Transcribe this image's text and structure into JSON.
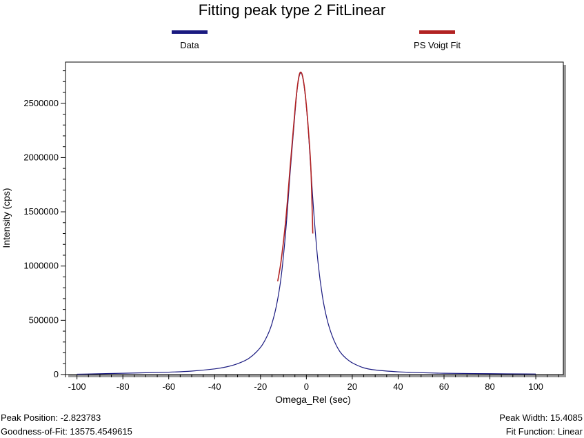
{
  "chart_data": {
    "type": "line",
    "title": "Fitting peak type 2 FitLinear",
    "xlabel": "Omega_Rel (sec)",
    "ylabel": "Intensity (cps)",
    "xlim": [
      -105,
      112
    ],
    "ylim": [
      0,
      2880000
    ],
    "x_ticks": [
      -100,
      -80,
      -60,
      -40,
      -20,
      0,
      20,
      40,
      60,
      80,
      100
    ],
    "x_tick_labels": [
      "-100",
      "-80",
      "-60",
      "-40",
      "-20",
      "0",
      "20",
      "40",
      "60",
      "80",
      "100"
    ],
    "y_ticks": [
      0,
      500000,
      1000000,
      1500000,
      2000000,
      2500000
    ],
    "y_tick_labels": [
      "0",
      "500000",
      "1000000",
      "1500000",
      "2000000",
      "2500000"
    ],
    "grid": false,
    "legend_placement": "top",
    "series": [
      {
        "name": "Data",
        "color": "#1a1a80",
        "x": [
          -100,
          -80,
          -60,
          -50,
          -40,
          -35,
          -30,
          -25,
          -20,
          -17,
          -15,
          -13,
          -11,
          -9,
          -7,
          -5,
          -4,
          -3,
          -2,
          -1,
          0,
          1,
          3,
          5,
          7,
          9,
          11,
          13,
          15,
          17,
          20,
          25,
          30,
          40,
          50,
          60,
          80,
          100
        ],
        "values": [
          3000,
          12000,
          22000,
          32000,
          52000,
          70000,
          100000,
          150000,
          250000,
          360000,
          470000,
          640000,
          900000,
          1320000,
          1880000,
          2400000,
          2630000,
          2760000,
          2770000,
          2660000,
          2470000,
          2200000,
          1560000,
          1050000,
          720000,
          510000,
          370000,
          270000,
          200000,
          155000,
          108000,
          62000,
          42000,
          25000,
          17000,
          12000,
          8000,
          5000
        ]
      },
      {
        "name": "PS Voigt Fit",
        "color": "#b22222",
        "x": [
          -12.5,
          -11,
          -9,
          -7,
          -5,
          -4,
          -3,
          -2,
          -1,
          0,
          1,
          2,
          2.8
        ],
        "values": [
          860000,
          1050000,
          1420000,
          1930000,
          2430000,
          2640000,
          2770000,
          2775000,
          2670000,
          2480000,
          2220000,
          1880000,
          1300000
        ]
      }
    ]
  },
  "footer": {
    "peak_position": "Peak Position: -2.823783",
    "goodness_of_fit": "Goodness-of-Fit: 13575.4549615",
    "peak_width": "Peak Width: 15.4085",
    "fit_function": "Fit Function: Linear"
  }
}
